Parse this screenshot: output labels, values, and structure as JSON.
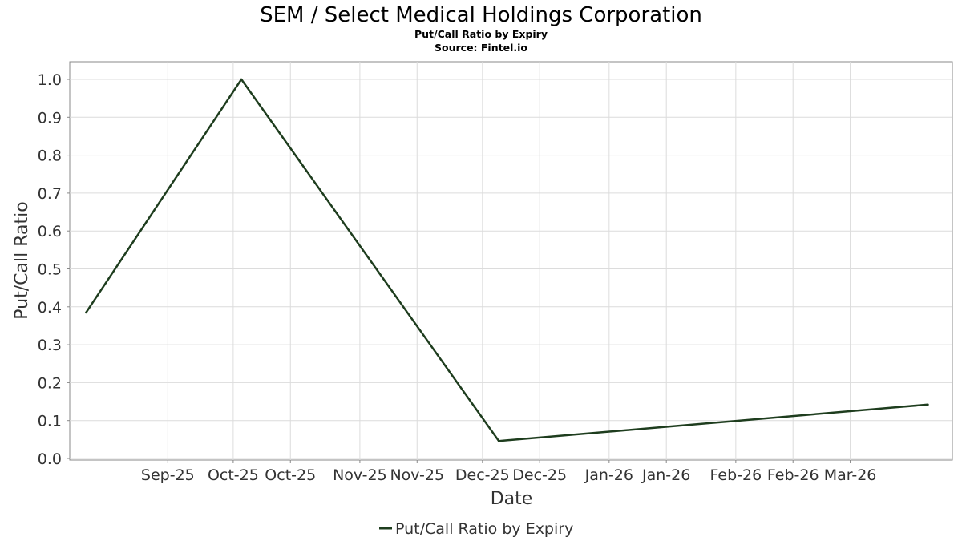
{
  "chart_data": {
    "type": "line",
    "title": "SEM / Select Medical Holdings Corporation",
    "subtitle": "Put/Call Ratio by Expiry",
    "source": "Source: Fintel.io",
    "xlabel": "Date",
    "ylabel": "Put/Call Ratio",
    "ylim": [
      0,
      1.0
    ],
    "yticks": [
      "0.0",
      "0.1",
      "0.2",
      "0.3",
      "0.4",
      "0.5",
      "0.6",
      "0.7",
      "0.8",
      "0.9",
      "1.0"
    ],
    "xlim": [
      "2025-08-22",
      "2026-03-26"
    ],
    "xticks": [
      {
        "date": "2025-09-15",
        "label": "Sep-25"
      },
      {
        "date": "2025-10-01",
        "label": "Oct-25"
      },
      {
        "date": "2025-10-15",
        "label": "Oct-25"
      },
      {
        "date": "2025-11-01",
        "label": "Nov-25"
      },
      {
        "date": "2025-11-15",
        "label": "Nov-25"
      },
      {
        "date": "2025-12-01",
        "label": "Dec-25"
      },
      {
        "date": "2025-12-15",
        "label": "Dec-25"
      },
      {
        "date": "2026-01-01",
        "label": "Jan-26"
      },
      {
        "date": "2026-01-15",
        "label": "Jan-26"
      },
      {
        "date": "2026-02-01",
        "label": "Feb-26"
      },
      {
        "date": "2026-02-15",
        "label": "Feb-26"
      },
      {
        "date": "2026-03-01",
        "label": "Mar-26"
      }
    ],
    "grid": true,
    "legend_position": "bottom-center",
    "series": [
      {
        "name": "Put/Call Ratio by Expiry",
        "color": "#1e3d1e",
        "points": [
          {
            "x": "2025-08-26",
            "y": 0.385
          },
          {
            "x": "2025-10-03",
            "y": 1.0
          },
          {
            "x": "2025-12-05",
            "y": 0.046
          },
          {
            "x": "2026-03-20",
            "y": 0.142
          }
        ]
      }
    ]
  }
}
